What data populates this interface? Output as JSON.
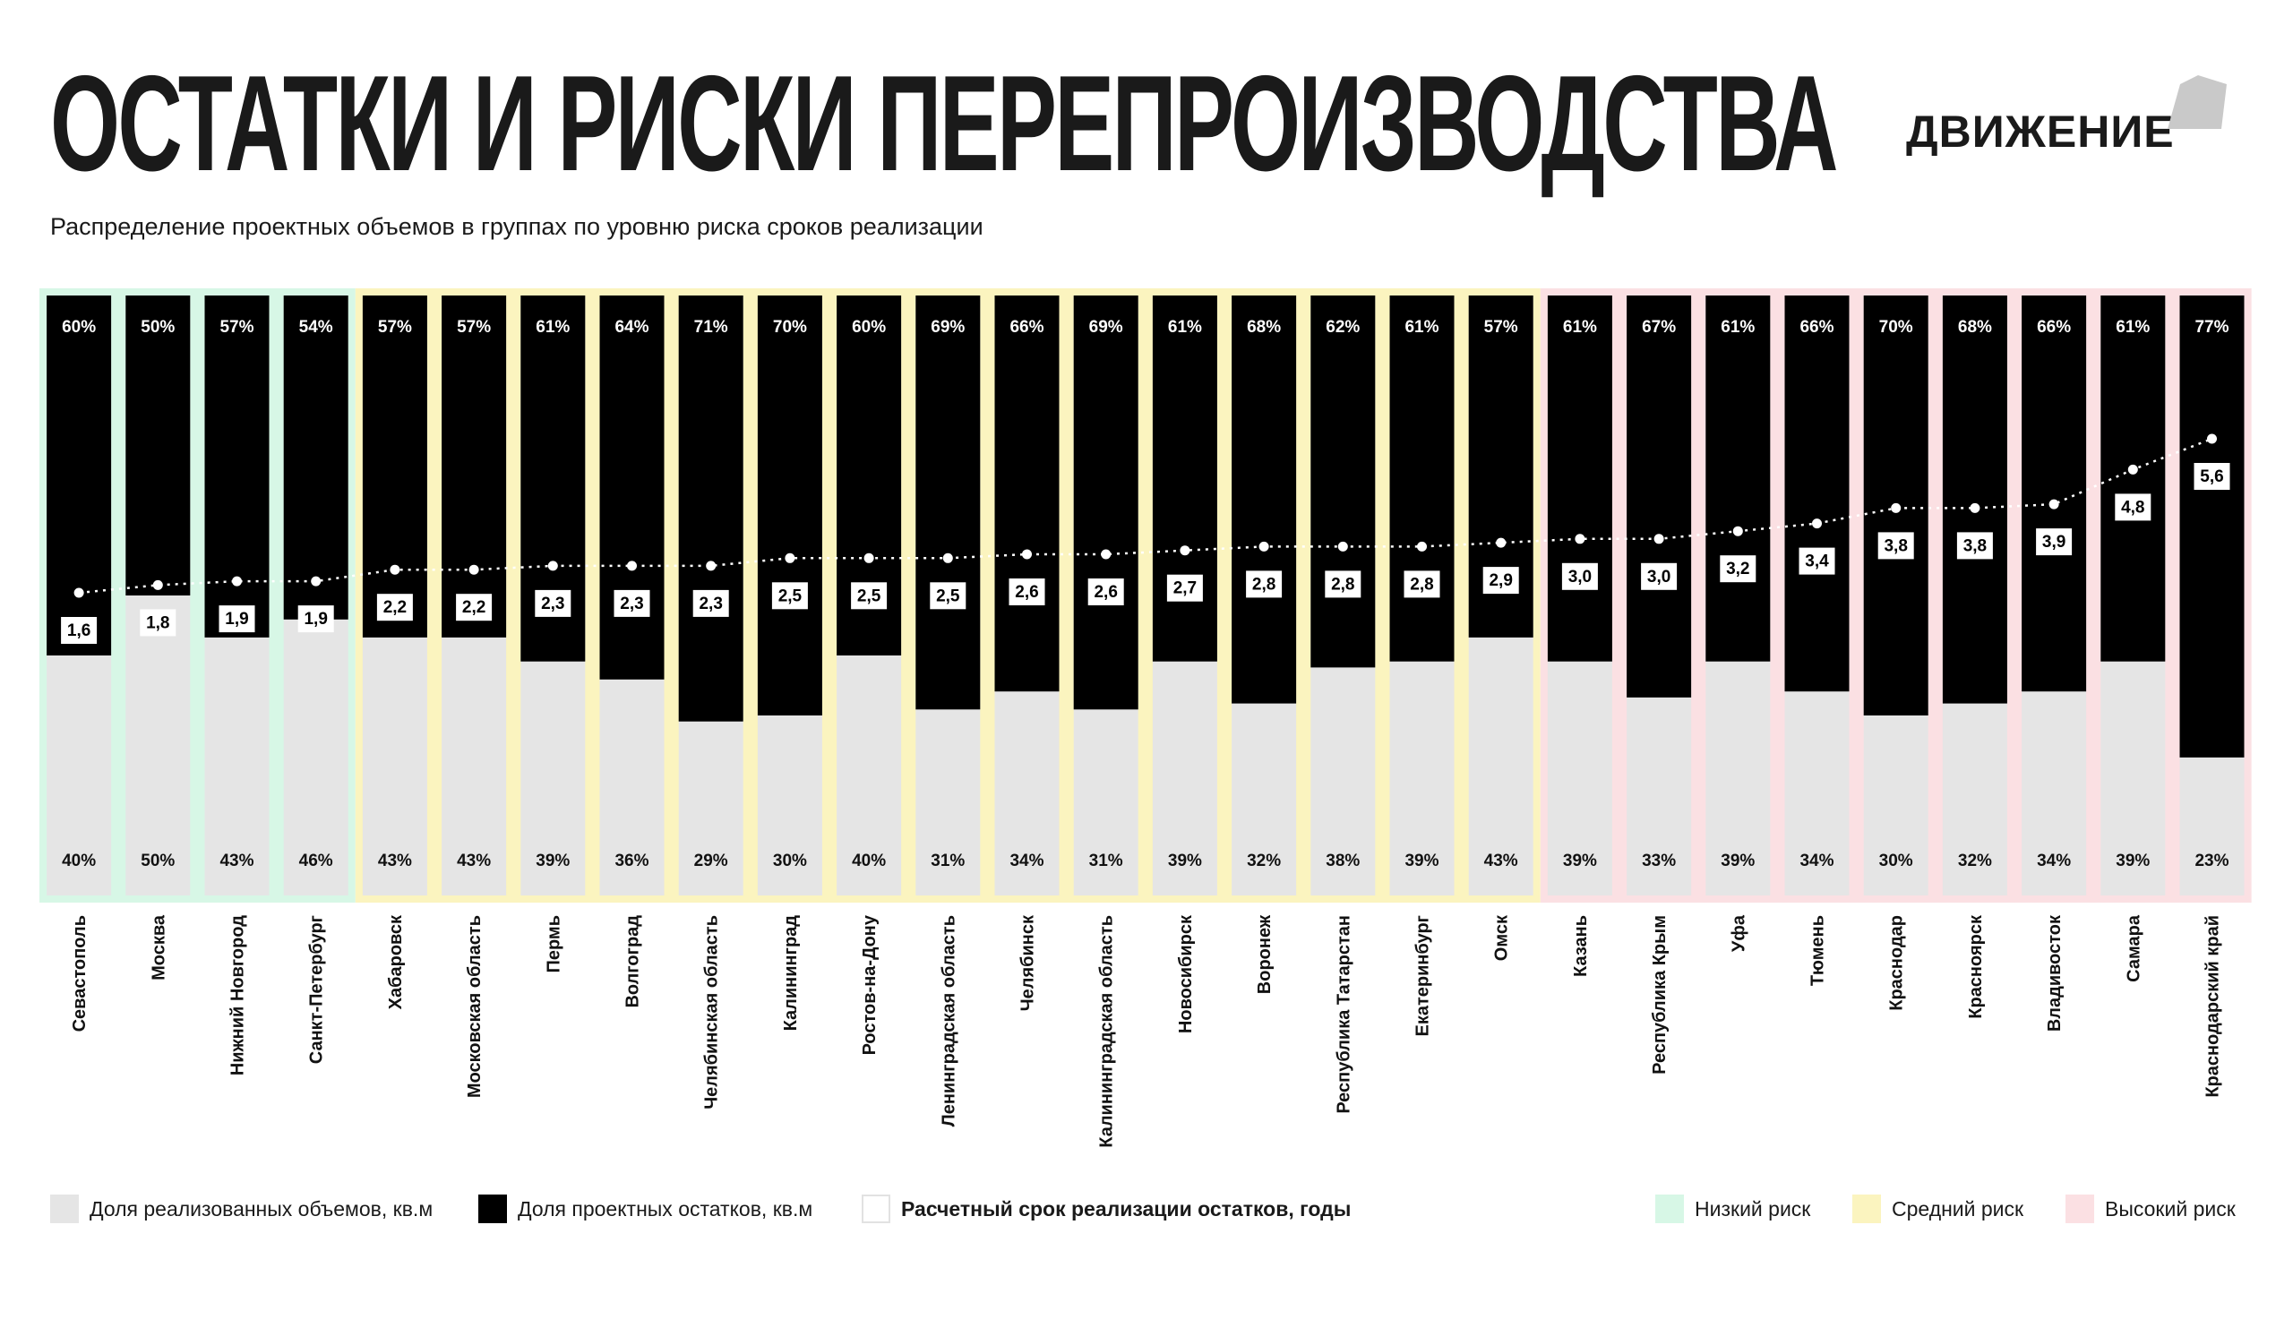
{
  "header": {
    "title": "ОСТАТКИ И РИСКИ ПЕРЕПРОИЗВОДСТВА",
    "subtitle": "Распределение проектных объемов в группах по уровню риска сроков реализации",
    "logo_text": "ДВИЖЕНИЕ"
  },
  "chart_data": {
    "type": "bar",
    "stacked": true,
    "categories": [
      "Севастополь",
      "Москва",
      "Нижний Новгород",
      "Санкт-Петербург",
      "Хабаровск",
      "Московская область",
      "Пермь",
      "Волгоград",
      "Челябинская область",
      "Калининград",
      "Ростов-на-Дону",
      "Ленинградская область",
      "Челябинск",
      "Калининградская область",
      "Новосибирск",
      "Воронеж",
      "Республика Татарстан",
      "Екатеринбург",
      "Омск",
      "Казань",
      "Республика Крым",
      "Уфа",
      "Тюмень",
      "Краснодар",
      "Красноярск",
      "Владивосток",
      "Самара",
      "Краснодарский край"
    ],
    "series": [
      {
        "name": "Доля реализованных объемов, кв.м",
        "color": "#e5e5e5",
        "values": [
          40,
          50,
          43,
          46,
          43,
          43,
          39,
          36,
          29,
          30,
          40,
          31,
          34,
          31,
          39,
          32,
          38,
          39,
          43,
          39,
          33,
          39,
          34,
          30,
          32,
          34,
          39,
          23
        ],
        "labels": [
          "40%",
          "50%",
          "43%",
          "46%",
          "43%",
          "43%",
          "39%",
          "36%",
          "29%",
          "30%",
          "40%",
          "31%",
          "34%",
          "31%",
          "39%",
          "32%",
          "38%",
          "39%",
          "43%",
          "39%",
          "33%",
          "39%",
          "34%",
          "30%",
          "32%",
          "34%",
          "39%",
          "23%"
        ]
      },
      {
        "name": "Доля проектных остатков, кв.м",
        "color": "#000000",
        "values": [
          60,
          50,
          57,
          54,
          57,
          57,
          61,
          64,
          71,
          70,
          60,
          69,
          66,
          69,
          61,
          68,
          62,
          61,
          57,
          61,
          67,
          61,
          66,
          70,
          68,
          66,
          61,
          77
        ],
        "labels": [
          "60%",
          "50%",
          "57%",
          "54%",
          "57%",
          "57%",
          "61%",
          "64%",
          "71%",
          "70%",
          "60%",
          "69%",
          "66%",
          "69%",
          "61%",
          "68%",
          "62%",
          "61%",
          "57%",
          "61%",
          "67%",
          "61%",
          "66%",
          "70%",
          "68%",
          "66%",
          "61%",
          "77%"
        ]
      },
      {
        "name": "Расчетный срок реализации остатков, годы",
        "type": "line-dotted",
        "color": "#ffffff",
        "values": [
          1.6,
          1.8,
          1.9,
          1.9,
          2.2,
          2.2,
          2.3,
          2.3,
          2.3,
          2.5,
          2.5,
          2.5,
          2.6,
          2.6,
          2.7,
          2.8,
          2.8,
          2.8,
          2.9,
          3.0,
          3.0,
          3.2,
          3.4,
          3.8,
          3.8,
          3.9,
          4.8,
          5.6
        ],
        "labels": [
          "1,6",
          "1,8",
          "1,9",
          "1,9",
          "2,2",
          "2,2",
          "2,3",
          "2,3",
          "2,3",
          "2,5",
          "2,5",
          "2,5",
          "2,6",
          "2,6",
          "2,7",
          "2,8",
          "2,8",
          "2,8",
          "2,9",
          "3,0",
          "3,0",
          "3,2",
          "3,4",
          "3,8",
          "3,8",
          "3,9",
          "4,8",
          "5,6"
        ]
      }
    ],
    "risk_groups": [
      {
        "name": "Низкий риск",
        "color": "#d7f7e6",
        "start": 0,
        "count": 4
      },
      {
        "name": "Средний риск",
        "color": "#fbf4bf",
        "start": 4,
        "count": 15
      },
      {
        "name": "Высокий риск",
        "color": "#fbe0e3",
        "start": 19,
        "count": 9
      }
    ],
    "ylim": [
      0,
      100
    ],
    "legend_position": "bottom"
  }
}
